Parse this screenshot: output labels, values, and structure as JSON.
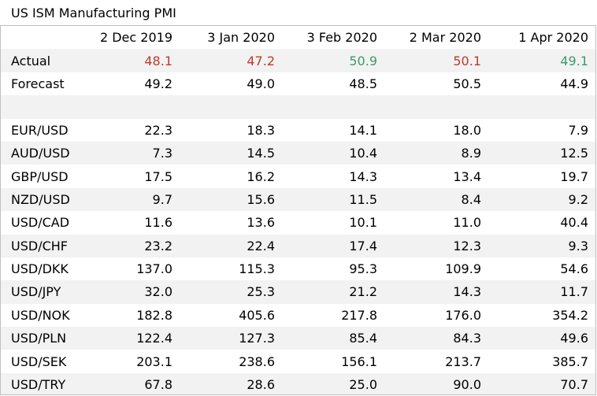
{
  "title": "US ISM Manufacturing PMI",
  "columns": [
    "2 Dec 2019",
    "3 Jan 2020",
    "3 Feb 2020",
    "2 Mar 2020",
    "1 Apr 2020"
  ],
  "colors": {
    "negative": "#c0392b",
    "positive": "#3a9a6a"
  },
  "actual": {
    "label": "Actual",
    "values": [
      "48.1",
      "47.2",
      "50.9",
      "50.1",
      "49.1"
    ],
    "status": [
      "negative",
      "negative",
      "positive",
      "negative",
      "positive"
    ]
  },
  "forecast": {
    "label": "Forecast",
    "values": [
      "49.2",
      "49.0",
      "48.5",
      "50.5",
      "44.9"
    ]
  },
  "pairs": [
    {
      "label": "EUR/USD",
      "values": [
        "22.3",
        "18.3",
        "14.1",
        "18.0",
        "7.9"
      ]
    },
    {
      "label": "AUD/USD",
      "values": [
        "7.3",
        "14.5",
        "10.4",
        "8.9",
        "12.5"
      ]
    },
    {
      "label": "GBP/USD",
      "values": [
        "17.5",
        "16.2",
        "14.3",
        "13.4",
        "19.7"
      ]
    },
    {
      "label": "NZD/USD",
      "values": [
        "9.7",
        "15.6",
        "11.5",
        "8.4",
        "9.2"
      ]
    },
    {
      "label": "USD/CAD",
      "values": [
        "11.6",
        "13.6",
        "10.1",
        "11.0",
        "40.4"
      ]
    },
    {
      "label": "USD/CHF",
      "values": [
        "23.2",
        "22.4",
        "17.4",
        "12.3",
        "9.3"
      ]
    },
    {
      "label": "USD/DKK",
      "values": [
        "137.0",
        "115.3",
        "95.3",
        "109.9",
        "54.6"
      ]
    },
    {
      "label": "USD/JPY",
      "values": [
        "32.0",
        "25.3",
        "21.2",
        "14.3",
        "11.7"
      ]
    },
    {
      "label": "USD/NOK",
      "values": [
        "182.8",
        "405.6",
        "217.8",
        "176.0",
        "354.2"
      ]
    },
    {
      "label": "USD/PLN",
      "values": [
        "122.4",
        "127.3",
        "85.4",
        "84.3",
        "49.6"
      ]
    },
    {
      "label": "USD/SEK",
      "values": [
        "203.1",
        "238.6",
        "156.1",
        "213.7",
        "385.7"
      ]
    },
    {
      "label": "USD/TRY",
      "values": [
        "67.8",
        "28.6",
        "25.0",
        "90.0",
        "70.7"
      ]
    }
  ]
}
